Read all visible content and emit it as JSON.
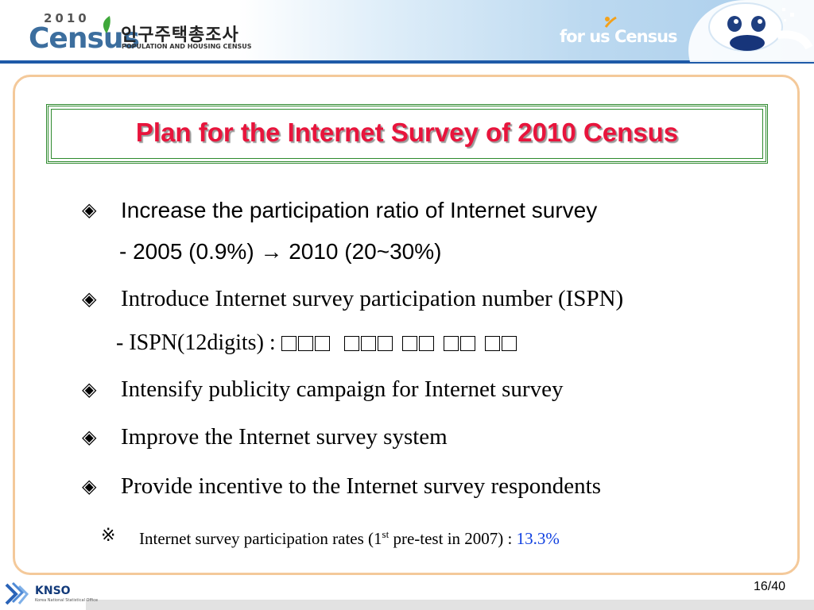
{
  "header": {
    "logo_year": "2010",
    "logo_word": "Census",
    "logo_korean": "인구주택총조사",
    "logo_subtitle": "POPULATION AND HOUSING CENSUS",
    "tagline": "for us Census"
  },
  "slide": {
    "title": "Plan for the Internet Survey of 2010 Census",
    "bullet_glyph": "◈",
    "items": [
      {
        "text": "Increase the participation ratio of Internet survey",
        "sub": "- 2005 (0.9%)  → 2010 (20~30%)"
      },
      {
        "text": "Introduce Internet survey participation number (ISPN)",
        "sub": "- ISPN(12digits) :"
      },
      {
        "text": "Intensify publicity campaign for Internet survey"
      },
      {
        "text": "Improve the Internet survey system"
      },
      {
        "text": "Provide incentive to the Internet survey respondents"
      }
    ],
    "note": {
      "mark": "※",
      "prefix": "Internet survey participation rates (1",
      "sup": "st",
      "suffix": " pre-test in 2007) : ",
      "rate": "13.3%"
    },
    "ispn_digit_groups": [
      3,
      3,
      2,
      2,
      2
    ]
  },
  "footer": {
    "org": "KNSO",
    "org_sub": "Korea National Statistical Office",
    "page": "16/40"
  },
  "colors": {
    "title": "#e8143c",
    "title_border": "#2e8a2e",
    "panel_border": "#f4c99a",
    "header_line": "#1e5aa8",
    "rate": "#1040e0"
  }
}
